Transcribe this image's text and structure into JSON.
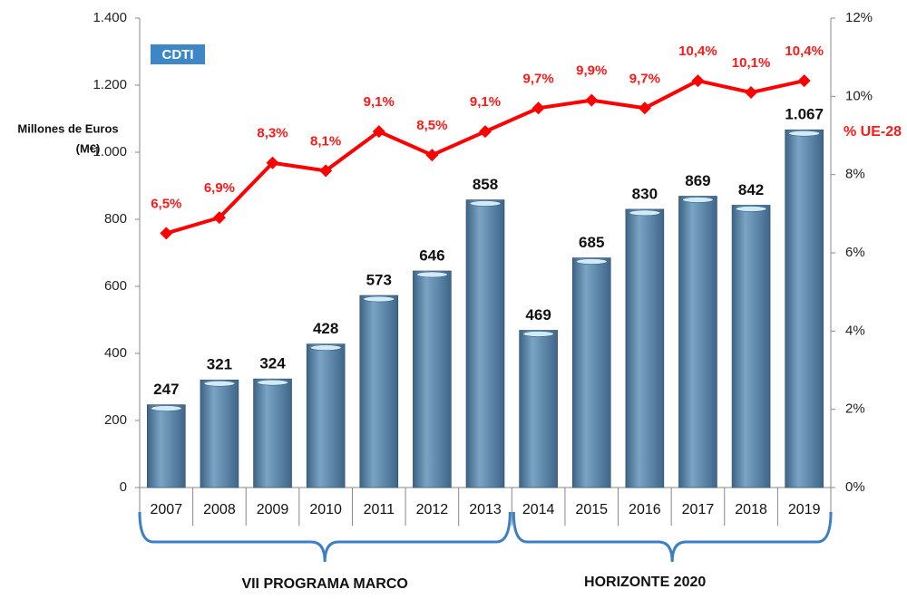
{
  "chart_data": {
    "type": "bar_line",
    "logo": "CDTI",
    "ylabel": [
      "Millones de Euros",
      "(M€)"
    ],
    "categories": [
      "2007",
      "2008",
      "2009",
      "2010",
      "2011",
      "2012",
      "2013",
      "2014",
      "2015",
      "2016",
      "2017",
      "2018",
      "2019"
    ],
    "series": [
      {
        "type": "bar",
        "color": "#5b87aa",
        "values": [
          247,
          321,
          324,
          428,
          573,
          646,
          858,
          469,
          685,
          830,
          869,
          842,
          1067
        ],
        "value_labels": [
          "247",
          "321",
          "324",
          "428",
          "573",
          "646",
          "858",
          "469",
          "685",
          "830",
          "869",
          "842",
          "1.067"
        ]
      },
      {
        "type": "line",
        "name": "% UE-28",
        "color": "#ff0000",
        "axis": "y2",
        "values": [
          6.5,
          6.9,
          8.3,
          8.1,
          9.1,
          8.5,
          9.1,
          9.7,
          9.9,
          9.7,
          10.4,
          10.1,
          10.4
        ],
        "value_labels": [
          "6,5%",
          "6,9%",
          "8,3%",
          "8,1%",
          "9,1%",
          "8,5%",
          "9,1%",
          "9,7%",
          "9,9%",
          "9,7%",
          "10,4%",
          "10,1%",
          "10,4%"
        ]
      }
    ],
    "ylim": [
      0,
      1400
    ],
    "yticks": [
      0,
      200,
      400,
      600,
      800,
      {
        "value": 1000,
        "label": "1.000"
      },
      {
        "value": 1200,
        "label": "1.200"
      },
      {
        "value": 1400,
        "label": "1.400"
      }
    ],
    "y2lim": [
      0,
      12
    ],
    "y2ticks": [
      {
        "value": 0,
        "label": "0%"
      },
      {
        "value": 2,
        "label": "2%"
      },
      {
        "value": 4,
        "label": "4%"
      },
      {
        "value": 6,
        "label": "6%"
      },
      {
        "value": 8,
        "label": "8%"
      },
      {
        "value": 10,
        "label": "10%"
      },
      {
        "value": 12,
        "label": "12%"
      }
    ],
    "annotations": [
      {
        "text": "VII PROGRAMA MARCO"
      },
      {
        "text": "HORIZONTE 2020"
      }
    ]
  }
}
